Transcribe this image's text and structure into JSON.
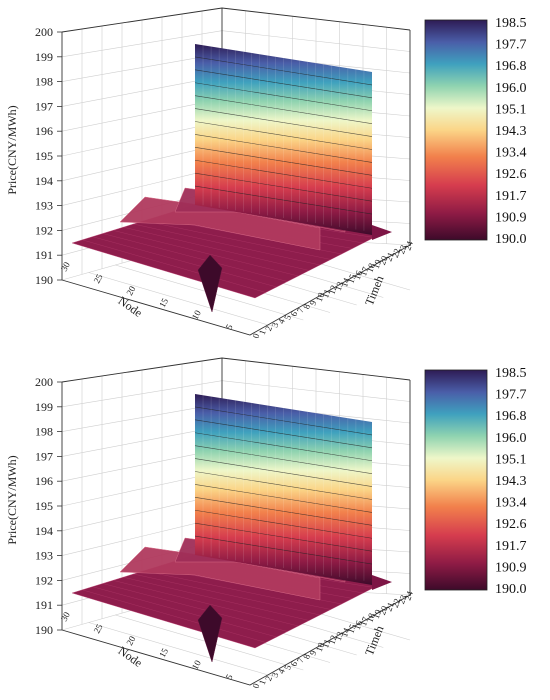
{
  "chart_data": [
    {
      "type": "surface3d",
      "zlabel": "Price(CNY/MWh)",
      "xlabel": "Node",
      "ylabel": "Timeh",
      "zticks": [
        "190",
        "191",
        "192",
        "193",
        "194",
        "195",
        "196",
        "197",
        "198",
        "199",
        "200"
      ],
      "node_ticks": [
        "30",
        "25",
        "20",
        "15",
        "10",
        "5"
      ],
      "time_ticks": [
        "0",
        "1",
        "2",
        "3",
        "4",
        "5",
        "6",
        "7",
        "8",
        "9",
        "10",
        "11",
        "12",
        "13",
        "14",
        "15",
        "16",
        "17",
        "18",
        "19",
        "20",
        "21",
        "22",
        "23",
        "24"
      ],
      "zlim": [
        190,
        200
      ],
      "colorbar_ticks": [
        "198.5",
        "197.7",
        "196.8",
        "196.0",
        "195.1",
        "194.3",
        "193.4",
        "192.6",
        "191.7",
        "190.9",
        "190.0"
      ],
      "colorbar_range": [
        190.0,
        198.5
      ],
      "base_price": 190.9,
      "ridges": [
        {
          "node": 27,
          "price": 192.5
        },
        {
          "node": 17,
          "price": 192.0
        },
        {
          "node": 3,
          "price": 191.3
        }
      ],
      "dip": {
        "node": 8,
        "price": 190.0
      },
      "peak": {
        "node": 1,
        "price": 198.5
      }
    },
    {
      "type": "surface3d",
      "zlabel": "Price(CNY/MWh)",
      "xlabel": "Node",
      "ylabel": "Timeh",
      "zticks": [
        "190",
        "191",
        "192",
        "193",
        "194",
        "195",
        "196",
        "197",
        "198",
        "199",
        "200"
      ],
      "node_ticks": [
        "30",
        "25",
        "20",
        "15",
        "10",
        "5"
      ],
      "time_ticks": [
        "0",
        "1",
        "2",
        "3",
        "4",
        "5",
        "6",
        "7",
        "8",
        "9",
        "10",
        "11",
        "12",
        "13",
        "14",
        "15",
        "16",
        "17",
        "18",
        "19",
        "20",
        "21",
        "22",
        "23",
        "24"
      ],
      "zlim": [
        190,
        200
      ],
      "colorbar_ticks": [
        "198.5",
        "197.7",
        "196.8",
        "196.0",
        "195.1",
        "194.3",
        "193.4",
        "192.6",
        "191.7",
        "190.9",
        "190.0"
      ],
      "colorbar_range": [
        190.0,
        198.5
      ],
      "base_price": 190.9,
      "ridges": [
        {
          "node": 27,
          "price": 192.5
        },
        {
          "node": 17,
          "price": 192.0
        },
        {
          "node": 3,
          "price": 191.3
        }
      ],
      "dip": {
        "node": 8,
        "price": 190.0
      },
      "peak": {
        "node": 1,
        "price": 198.5
      }
    }
  ]
}
